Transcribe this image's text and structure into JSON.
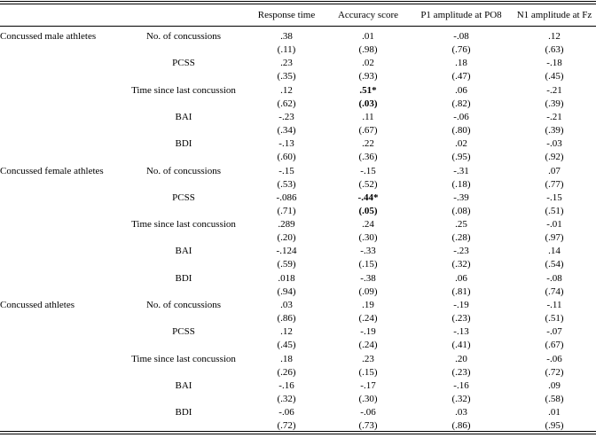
{
  "columns": [
    "",
    "",
    "Response time",
    "Accuracy score",
    "P1 amplitude at PO8",
    "N1 amplitude at Fz"
  ],
  "groups": [
    {
      "name": "Concussed male athletes",
      "rows": [
        {
          "var": "No. of concussions",
          "values": [
            ".38",
            ".01",
            "-.08",
            ".12"
          ],
          "p": [
            "(.11)",
            "(.98)",
            "(.76)",
            "(.63)"
          ]
        },
        {
          "var": "PCSS",
          "values": [
            ".23",
            ".02",
            ".18",
            "-.18"
          ],
          "p": [
            "(.35)",
            "(.93)",
            "(.47)",
            "(.45)"
          ]
        },
        {
          "var": "Time since last concussion",
          "values": [
            ".12",
            ".51*",
            ".06",
            "-.21"
          ],
          "p": [
            "(.62)",
            "(.03)",
            "(.82)",
            "(.39)"
          ],
          "bold": [
            false,
            true,
            false,
            false
          ]
        },
        {
          "var": "BAI",
          "values": [
            "-.23",
            ".11",
            "-.06",
            "-.21"
          ],
          "p": [
            "(.34)",
            "(.67)",
            "(.80)",
            "(.39)"
          ]
        },
        {
          "var": "BDI",
          "values": [
            "-.13",
            ".22",
            ".02",
            "-.03"
          ],
          "p": [
            "(.60)",
            "(.36)",
            "(.95)",
            "(.92)"
          ]
        }
      ]
    },
    {
      "name": "Concussed female athletes",
      "rows": [
        {
          "var": "No. of concussions",
          "values": [
            "-.15",
            "-.15",
            "-.31",
            ".07"
          ],
          "p": [
            "(.53)",
            "(.52)",
            "(.18)",
            "(.77)"
          ]
        },
        {
          "var": "PCSS",
          "values": [
            "-.086",
            "-.44*",
            "-.39",
            "-.15"
          ],
          "p": [
            "(.71)",
            "(.05)",
            "(.08)",
            "(.51)"
          ],
          "bold": [
            false,
            true,
            false,
            false
          ]
        },
        {
          "var": "Time since last concussion",
          "values": [
            ".289",
            ".24",
            ".25",
            "-.01"
          ],
          "p": [
            "(.20)",
            "(.30)",
            "(.28)",
            "(.97)"
          ]
        },
        {
          "var": "BAI",
          "values": [
            "-.124",
            "-.33",
            "-.23",
            ".14"
          ],
          "p": [
            "(.59)",
            "(.15)",
            "(.32)",
            "(.54)"
          ]
        },
        {
          "var": "BDI",
          "values": [
            ".018",
            "-.38",
            ".06",
            "-.08"
          ],
          "p": [
            "(.94)",
            "(.09)",
            "(.81)",
            "(.74)"
          ]
        }
      ]
    },
    {
      "name": "Concussed athletes",
      "rows": [
        {
          "var": "No. of concussions",
          "values": [
            ".03",
            ".19",
            "-.19",
            "-.11"
          ],
          "p": [
            "(.86)",
            "(.24)",
            "(.23)",
            "(.51)"
          ]
        },
        {
          "var": "PCSS",
          "values": [
            ".12",
            "-.19",
            "-.13",
            "-.07"
          ],
          "p": [
            "(.45)",
            "(.24)",
            "(.41)",
            "(.67)"
          ]
        },
        {
          "var": "Time since last concussion",
          "values": [
            ".18",
            ".23",
            ".20",
            "-.06"
          ],
          "p": [
            "(.26)",
            "(.15)",
            "(.23)",
            "(.72)"
          ]
        },
        {
          "var": "BAI",
          "values": [
            "-.16",
            "-.17",
            "-.16",
            ".09"
          ],
          "p": [
            "(.32)",
            "(.30)",
            "(.32)",
            "(.58)"
          ]
        },
        {
          "var": "BDI",
          "values": [
            "-.06",
            "-.06",
            ".03",
            ".01"
          ],
          "p": [
            "(.72)",
            "(.73)",
            "(.86)",
            "(.95)"
          ]
        }
      ]
    }
  ]
}
